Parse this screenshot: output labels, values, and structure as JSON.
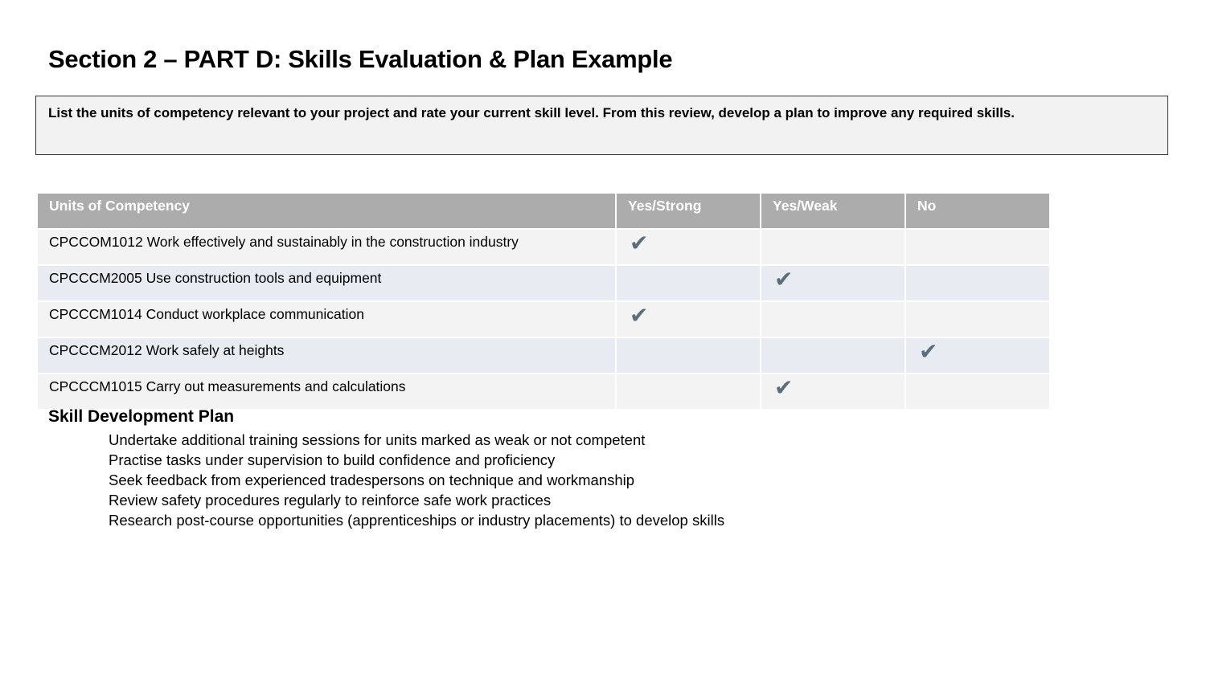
{
  "page_title": "Section 2 – PART D: Skills Evaluation & Plan Example",
  "instruction": "List the units of competency relevant to your project and rate your current skill level. From this review, develop a plan to improve any required skills.",
  "table": {
    "headers": [
      "Units of Competency",
      "Yes/Strong",
      "Yes/Weak",
      "No"
    ],
    "check_glyph": "✔",
    "check_color": "#5b6e7b",
    "rows": [
      {
        "unit": "CPCCOM1012 Work effectively and sustainably in the construction industry",
        "rating": "Yes/Strong"
      },
      {
        "unit": "CPCCCM2005 Use construction tools and equipment",
        "rating": "Yes/Weak"
      },
      {
        "unit": "CPCCCM1014 Conduct workplace communication",
        "rating": "Yes/Strong"
      },
      {
        "unit": "CPCCCM2012 Work safely at heights",
        "rating": "No"
      },
      {
        "unit": "CPCCCM1015 Carry out measurements and calculations",
        "rating": "Yes/Weak"
      }
    ]
  },
  "plan": {
    "title": "Skill Development Plan",
    "items": [
      "Undertake additional training sessions for units marked as weak or not competent",
      "Practise tasks under supervision to build confidence and proficiency",
      "Seek feedback from experienced tradespersons on technique and workmanship",
      "Review safety procedures regularly to reinforce safe work practices",
      "Research post-course opportunities (apprenticeships or industry placements) to develop skills"
    ]
  }
}
